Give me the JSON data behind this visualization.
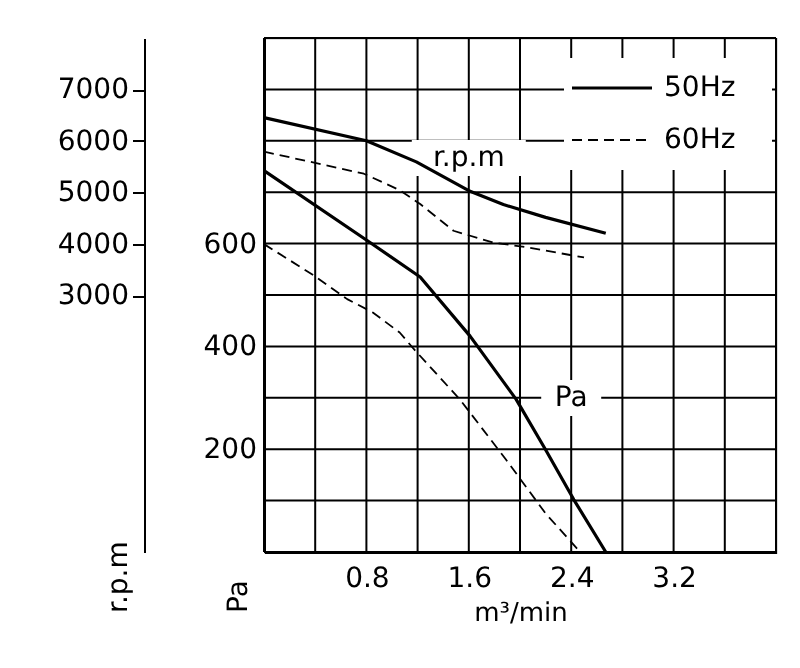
{
  "chart_data": {
    "type": "line",
    "xlabel": "m³/min",
    "ylabel": "Pa",
    "y2label": "r.p.m",
    "xlim": [
      0,
      4.0
    ],
    "xticks": [
      {
        "value": 0,
        "label": null
      },
      {
        "value": 0.4,
        "label": null
      },
      0.8,
      {
        "value": 1.2,
        "label": null
      },
      1.6,
      {
        "value": 2.0,
        "label": null
      },
      2.4,
      {
        "value": 2.8,
        "label": null
      },
      3.2,
      {
        "value": 3.6,
        "label": null
      },
      {
        "value": 4.0,
        "label": null
      }
    ],
    "ylim": [
      0,
      1000
    ],
    "yticks": [
      {
        "value": 0,
        "label": null
      },
      {
        "value": 100,
        "label": null
      },
      200,
      {
        "value": 300,
        "label": null
      },
      400,
      {
        "value": 500,
        "label": null
      },
      600,
      {
        "value": 700,
        "label": null
      },
      {
        "value": 800,
        "label": null
      },
      {
        "value": 900,
        "label": null
      },
      {
        "value": 1000,
        "label": null
      }
    ],
    "y2lim": [
      -2000,
      8000
    ],
    "y2ticks": [
      3000,
      4000,
      5000,
      6000,
      7000
    ],
    "grid": true,
    "legend": "top right",
    "marker": "none",
    "series": [
      {
        "name": "50Hz",
        "color": "#000000",
        "line_style": "solid",
        "axis": "y2",
        "x": [
          0,
          0.8,
          1.19,
          1.6,
          1.87,
          2.2,
          2.67
        ],
        "values": [
          6450,
          6000,
          5590,
          5030,
          4760,
          4510,
          4200
        ]
      },
      {
        "name": "60Hz",
        "color": "#000000",
        "line_style": "dashed",
        "axis": "y2",
        "x": [
          0,
          0.78,
          1.06,
          1.22,
          1.48,
          1.79,
          2.05,
          2.5
        ],
        "values": [
          5790,
          5360,
          5040,
          4770,
          4250,
          4020,
          3930,
          3730
        ]
      },
      {
        "color": "#000000",
        "line_style": "solid",
        "x": [
          0,
          0.8,
          1.22,
          1.61,
          1.97,
          2.2,
          2.42,
          2.67
        ],
        "values": [
          742,
          607,
          535,
          420,
          297,
          199,
          102,
          0
        ]
      },
      {
        "color": "#000000",
        "line_style": "dashed",
        "x": [
          0,
          0.39,
          0.65,
          0.85,
          1.06,
          1.17,
          1.53,
          1.89,
          2.2,
          2.47
        ],
        "values": [
          599,
          538,
          492,
          466,
          427,
          395,
          297,
          180,
          75,
          0
        ]
      }
    ],
    "annotations": [
      "r.p.m",
      "Pa"
    ]
  }
}
